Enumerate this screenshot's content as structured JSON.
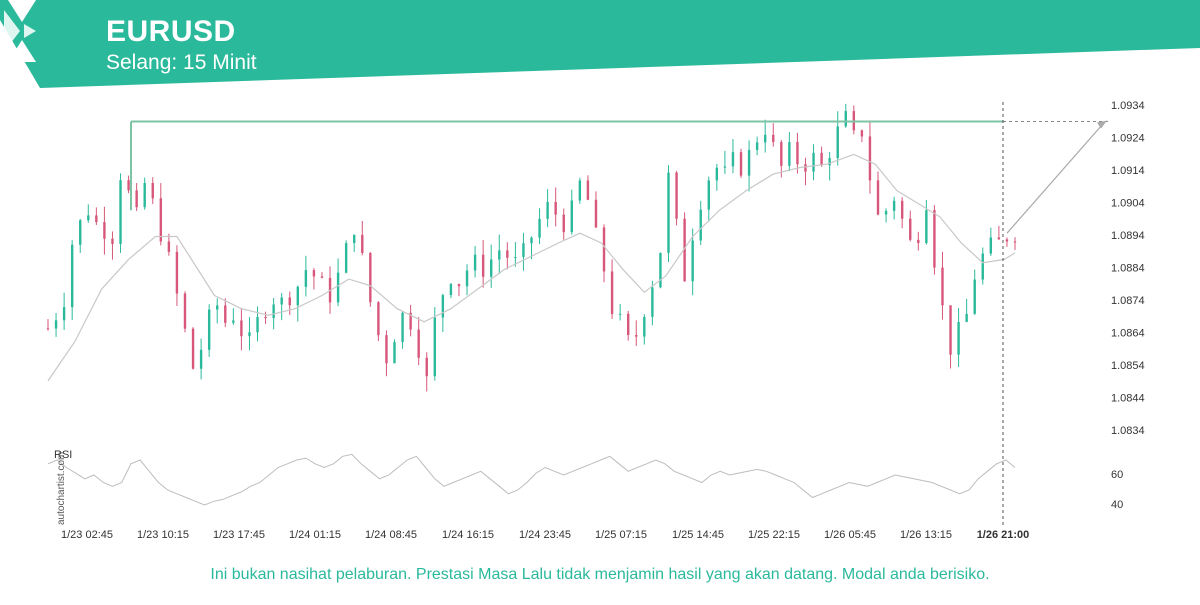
{
  "header": {
    "symbol": "EURUSD",
    "interval": "Selang: 15 Minit",
    "brand_color": "#2bb99c"
  },
  "watermark": "autochartist.com",
  "footer": {
    "disclaimer": "Ini bukan nasihat pelaburan. Prestasi Masa Lalu tidak menjamin hasil yang akan datang. Modal anda berisiko."
  },
  "chart_data": {
    "type": "candlestick",
    "y_ticks": [
      "1.0934",
      "1.0924",
      "1.0914",
      "1.0904",
      "1.0894",
      "1.0884",
      "1.0874",
      "1.0864",
      "1.0854",
      "1.0844",
      "1.0834"
    ],
    "ylim": [
      1.083,
      1.0936
    ],
    "x_ticks": [
      "1/23 02:45",
      "1/23 10:15",
      "1/23 17:45",
      "1/24 01:15",
      "1/24 08:45",
      "1/24 16:15",
      "1/24 23:45",
      "1/25 07:15",
      "1/25 14:45",
      "1/25 22:15",
      "1/26 05:45",
      "1/26 13:15",
      "1/26 21:00"
    ],
    "current_time_label": "1/26 21:00",
    "resistance_level": 1.0927,
    "projection": {
      "from": 1.0893,
      "to": 1.0927
    },
    "price_path": [
      [
        0,
        1.0864
      ],
      [
        3,
        1.0868
      ],
      [
        6,
        1.0873
      ],
      [
        9,
        1.089
      ],
      [
        12,
        1.0896
      ],
      [
        15,
        1.09
      ],
      [
        18,
        1.0896
      ],
      [
        21,
        1.0894
      ],
      [
        24,
        1.0892
      ],
      [
        27,
        1.0911
      ],
      [
        30,
        1.0905
      ],
      [
        33,
        1.0898
      ],
      [
        36,
        1.0908
      ],
      [
        39,
        1.0902
      ],
      [
        42,
        1.0893
      ],
      [
        45,
        1.0885
      ],
      [
        48,
        1.0874
      ],
      [
        51,
        1.0863
      ],
      [
        54,
        1.0852
      ],
      [
        57,
        1.0858
      ],
      [
        60,
        1.0867
      ],
      [
        63,
        1.0871
      ],
      [
        66,
        1.0866
      ],
      [
        69,
        1.0868
      ],
      [
        72,
        1.0863
      ],
      [
        75,
        1.086
      ],
      [
        78,
        1.0866
      ],
      [
        81,
        1.087
      ],
      [
        84,
        1.0873
      ],
      [
        87,
        1.0872
      ],
      [
        90,
        1.0874
      ],
      [
        93,
        1.0877
      ],
      [
        96,
        1.0882
      ],
      [
        99,
        1.088
      ],
      [
        102,
        1.0877
      ],
      [
        105,
        1.0874
      ],
      [
        108,
        1.088
      ],
      [
        111,
        1.0888
      ],
      [
        114,
        1.0895
      ],
      [
        117,
        1.0885
      ],
      [
        120,
        1.0872
      ],
      [
        123,
        1.0862
      ],
      [
        126,
        1.0855
      ],
      [
        129,
        1.0862
      ],
      [
        132,
        1.0868
      ],
      [
        135,
        1.0866
      ],
      [
        138,
        1.0858
      ],
      [
        141,
        1.0848
      ],
      [
        144,
        1.0866
      ],
      [
        147,
        1.0875
      ],
      [
        150,
        1.088
      ],
      [
        153,
        1.0878
      ],
      [
        156,
        1.0882
      ],
      [
        159,
        1.0884
      ],
      [
        162,
        1.0882
      ],
      [
        165,
        1.0885
      ],
      [
        168,
        1.0888
      ],
      [
        171,
        1.0886
      ],
      [
        174,
        1.0884
      ],
      [
        177,
        1.0887
      ],
      [
        180,
        1.0892
      ],
      [
        183,
        1.0897
      ],
      [
        186,
        1.0901
      ],
      [
        189,
        1.0899
      ],
      [
        192,
        1.0896
      ],
      [
        195,
        1.09
      ],
      [
        198,
        1.0908
      ],
      [
        201,
        1.0903
      ],
      [
        204,
        1.0892
      ],
      [
        207,
        1.0882
      ],
      [
        210,
        1.087
      ],
      [
        213,
        1.0866
      ],
      [
        216,
        1.086
      ],
      [
        219,
        1.0862
      ],
      [
        222,
        1.087
      ],
      [
        225,
        1.0878
      ],
      [
        228,
        1.0888
      ],
      [
        231,
        1.091
      ],
      [
        234,
        1.0895
      ],
      [
        237,
        1.088
      ],
      [
        240,
        1.0893
      ],
      [
        243,
        1.0903
      ],
      [
        246,
        1.091
      ],
      [
        249,
        1.0913
      ],
      [
        252,
        1.0911
      ],
      [
        255,
        1.0915
      ],
      [
        258,
        1.0913
      ],
      [
        261,
        1.0917
      ],
      [
        264,
        1.0922
      ],
      [
        267,
        1.0925
      ],
      [
        270,
        1.0919
      ],
      [
        273,
        1.0913
      ],
      [
        276,
        1.0918
      ],
      [
        279,
        1.0915
      ],
      [
        282,
        1.0914
      ],
      [
        285,
        1.0916
      ],
      [
        288,
        1.0913
      ],
      [
        291,
        1.0918
      ],
      [
        294,
        1.0924
      ],
      [
        297,
        1.0928
      ],
      [
        300,
        1.0922
      ],
      [
        303,
        1.0924
      ],
      [
        306,
        1.091
      ],
      [
        309,
        1.0898
      ],
      [
        312,
        1.09
      ],
      [
        315,
        1.0904
      ],
      [
        318,
        1.0897
      ],
      [
        321,
        1.089
      ],
      [
        324,
        1.0893
      ],
      [
        327,
        1.0903
      ],
      [
        330,
        1.0885
      ],
      [
        333,
        1.087
      ],
      [
        336,
        1.0858
      ],
      [
        339,
        1.0863
      ],
      [
        342,
        1.0868
      ],
      [
        345,
        1.088
      ],
      [
        348,
        1.0886
      ],
      [
        351,
        1.0889
      ],
      [
        354,
        1.089
      ],
      [
        357,
        1.0892
      ],
      [
        360,
        1.0893
      ]
    ],
    "ma_path": [
      [
        0,
        1.0848
      ],
      [
        10,
        1.086
      ],
      [
        20,
        1.0876
      ],
      [
        30,
        1.0885
      ],
      [
        40,
        1.0892
      ],
      [
        48,
        1.0892
      ],
      [
        55,
        1.0883
      ],
      [
        62,
        1.0874
      ],
      [
        72,
        1.087
      ],
      [
        82,
        1.0868
      ],
      [
        92,
        1.087
      ],
      [
        102,
        1.0874
      ],
      [
        112,
        1.0879
      ],
      [
        120,
        1.0877
      ],
      [
        130,
        1.087
      ],
      [
        140,
        1.0866
      ],
      [
        150,
        1.087
      ],
      [
        160,
        1.0876
      ],
      [
        170,
        1.0882
      ],
      [
        180,
        1.0886
      ],
      [
        190,
        1.089
      ],
      [
        198,
        1.0893
      ],
      [
        206,
        1.089
      ],
      [
        214,
        1.0882
      ],
      [
        222,
        1.0875
      ],
      [
        230,
        1.088
      ],
      [
        240,
        1.0892
      ],
      [
        250,
        1.09
      ],
      [
        260,
        1.0906
      ],
      [
        270,
        1.0911
      ],
      [
        280,
        1.0913
      ],
      [
        290,
        1.0914
      ],
      [
        300,
        1.0917
      ],
      [
        308,
        1.0914
      ],
      [
        316,
        1.0906
      ],
      [
        324,
        1.0902
      ],
      [
        332,
        1.0898
      ],
      [
        340,
        1.089
      ],
      [
        348,
        1.0884
      ],
      [
        356,
        1.0885
      ],
      [
        360,
        1.0887
      ]
    ],
    "rsi": {
      "label": "RSI",
      "ticks": [
        "60",
        "40"
      ],
      "ylim": [
        30,
        70
      ],
      "values": [
        60,
        62,
        58,
        55,
        52,
        54,
        50,
        48,
        50,
        60,
        62,
        56,
        50,
        46,
        44,
        42,
        40,
        38,
        40,
        41,
        43,
        45,
        48,
        50,
        54,
        58,
        60,
        62,
        63,
        60,
        58,
        60,
        64,
        65,
        60,
        56,
        52,
        54,
        58,
        62,
        64,
        58,
        52,
        48,
        50,
        52,
        54,
        56,
        52,
        48,
        44,
        46,
        50,
        55,
        58,
        56,
        54,
        56,
        58,
        60,
        62,
        64,
        60,
        56,
        58,
        60,
        62,
        60,
        56,
        54,
        52,
        50,
        54,
        56,
        54,
        55,
        56,
        57,
        56,
        54,
        52,
        50,
        46,
        42,
        44,
        46,
        48,
        50,
        49,
        48,
        50,
        52,
        54,
        53,
        52,
        51,
        50,
        48,
        46,
        44,
        46,
        52,
        56,
        60,
        62,
        58
      ]
    }
  }
}
